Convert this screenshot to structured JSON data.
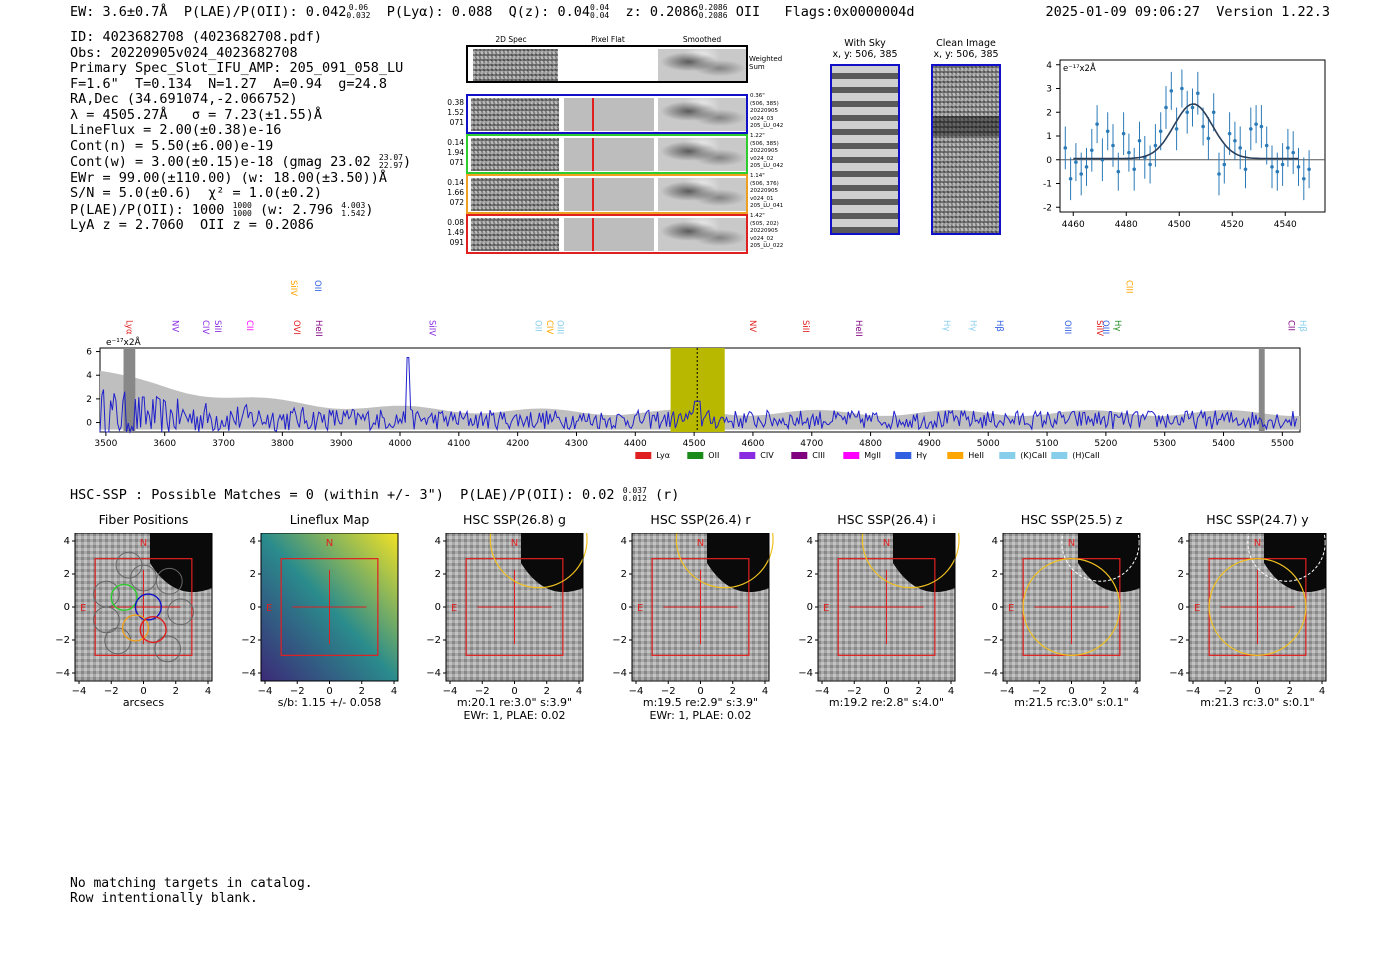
{
  "header": {
    "top_line": "EW: 3.6±0.7Å  P(LAE)/P(OII): 0.042 {0.06/0.032}  P(Lyα): 0.088  Q(z): 0.04 {0.04/0.04}  z: 0.2086 {0.2086/0.2086} OII   Flags:0x0000004d",
    "ew": "EW: 3.6±0.7Å",
    "plae_label": "P(LAE)/P(OII): 0.042",
    "plae_hi": "0.06",
    "plae_lo": "0.032",
    "plya": "P(Lyα): 0.088",
    "qz_label": "Q(z): 0.04",
    "qz_hi": "0.04",
    "qz_lo": "0.04",
    "z_label": "z: 0.2086",
    "z_hi": "0.2086",
    "z_lo": "0.2086",
    "z_line": "OII",
    "flags": "Flags:0x0000004d",
    "timestamp": "2025-01-09 09:06:27  Version 1.22.3"
  },
  "info": {
    "id": "ID: 4023682708 (4023682708.pdf)",
    "obs": "Obs: 20220905v024_4023682708",
    "primary": "Primary Spec_Slot_IFU_AMP: 205_091_058_LU",
    "fiber": "F=1.6\"  T=0.134  N=1.27  A=0.94  g=24.8",
    "radec": "RA,Dec (34.691074,-2.066752)",
    "lambda": "λ = 4505.27Å   σ = 7.23(±1.55)Å",
    "lineflux": "LineFlux = 2.00(±0.38)e-16",
    "contn": "Cont(n) = 5.50(±6.00)e-19",
    "contw_a": "Cont(w) = 3.00(±0.15)e-18 (gmag 23.02",
    "contw_hi": "23.07",
    "contw_lo": "22.97",
    "contw_b": ")",
    "ewr": "EWr = 99.00(±110.00) (w: 18.00(±3.50))Å",
    "sn": "S/N = 5.0(±0.6)  χ² = 1.0(±0.2)",
    "plae_a": "P(LAE)/P(OII): 1000",
    "plae_hi": "1000",
    "plae_lo": "1000",
    "plae_b": "(w: 2.796",
    "plae_w_hi": "4.003",
    "plae_w_lo": "1.542",
    "plae_c": ")",
    "lya": "LyA z = 2.7060  OII z = 0.2086"
  },
  "cutouts": {
    "col_2d": "2D Spec",
    "col_flat": "Pixel Flat",
    "col_smooth": "Smoothed",
    "weighted": "Weighted Sum",
    "rows": [
      {
        "left": [
          "0.38",
          "1.52",
          "071"
        ],
        "right": [
          "0.36\"",
          "(506, 385)",
          "20220905",
          "v024_03",
          "205_LU_042"
        ],
        "color": "#1010c8"
      },
      {
        "left": [
          "0.14",
          "1.94",
          "071"
        ],
        "right": [
          "1.22\"",
          "(506, 385)",
          "20220905",
          "v024_02",
          "205_LU_042"
        ],
        "color": "#2ecc2e"
      },
      {
        "left": [
          "0.14",
          "1.66",
          "072"
        ],
        "right": [
          "1.14\"",
          "(506, 376)",
          "20220905",
          "v024_01",
          "205_LU_041"
        ],
        "color": "#f0a020"
      },
      {
        "left": [
          "0.08",
          "1.49",
          "091"
        ],
        "right": [
          "1.42\"",
          "(505, 202)",
          "20220905",
          "v024_02",
          "205_LU_022"
        ],
        "color": "#e02020"
      }
    ]
  },
  "sky": {
    "with_sky_title": "With Sky",
    "with_sky_xy": "x, y: 506, 385",
    "clean_title": "Clean Image",
    "clean_xy": "x, y: 506, 385"
  },
  "colors": {
    "blue": "#1f1fcc",
    "zoom_blue": "#2a7ab8",
    "band": "#b8b800",
    "red": "#e02020",
    "gray": "#bfbfbf"
  },
  "chart_data": [
    {
      "type": "scatter",
      "id": "zoom-fit",
      "title": "",
      "ylabel_prefix": "e⁻¹⁷x2Å",
      "xlim": [
        4455,
        4555
      ],
      "ylim": [
        -2.2,
        4.2
      ],
      "xticks": [
        4460,
        4480,
        4500,
        4520,
        4540
      ],
      "yticks": [
        -2,
        -1,
        0,
        1,
        2,
        3,
        4
      ],
      "x": [
        4457,
        4459,
        4461,
        4463,
        4465,
        4467,
        4469,
        4471,
        4473,
        4475,
        4477,
        4479,
        4481,
        4483,
        4485,
        4487,
        4489,
        4491,
        4493,
        4495,
        4497,
        4499,
        4501,
        4503,
        4505,
        4507,
        4509,
        4511,
        4513,
        4515,
        4517,
        4519,
        4521,
        4523,
        4525,
        4527,
        4529,
        4531,
        4533,
        4535,
        4537,
        4539,
        4541,
        4543,
        4545,
        4547,
        4549
      ],
      "y": [
        0.5,
        -0.8,
        -0.1,
        -0.6,
        -0.3,
        0.4,
        1.5,
        0.0,
        1.2,
        0.6,
        -0.5,
        1.1,
        0.3,
        -0.4,
        0.8,
        0.1,
        -0.2,
        0.6,
        1.2,
        2.2,
        2.9,
        1.3,
        3.0,
        2.0,
        2.2,
        2.8,
        1.4,
        0.9,
        2.0,
        -0.6,
        -0.2,
        1.1,
        0.8,
        0.5,
        -0.4,
        1.3,
        1.5,
        1.4,
        0.6,
        -0.3,
        -0.5,
        -0.2,
        0.5,
        0.3,
        -0.3,
        -0.8,
        -0.4
      ],
      "err": [
        0.9,
        0.9,
        0.8,
        0.9,
        0.8,
        0.9,
        0.8,
        0.9,
        0.8,
        0.9,
        0.8,
        0.9,
        0.8,
        0.9,
        0.8,
        0.9,
        0.8,
        0.9,
        0.8,
        0.9,
        0.8,
        0.9,
        0.8,
        0.9,
        0.8,
        0.9,
        0.8,
        0.9,
        0.8,
        0.9,
        0.8,
        0.9,
        0.8,
        0.9,
        0.8,
        0.9,
        0.8,
        0.9,
        0.8,
        0.9,
        0.8,
        0.9,
        0.8,
        0.9,
        0.8,
        0.9,
        0.8
      ],
      "fit": {
        "center": 4505.27,
        "sigma": 7.23,
        "amp": 2.3,
        "baseline": 0.05
      }
    },
    {
      "type": "line",
      "id": "full-spectrum",
      "ylabel_prefix": "e⁻¹⁷x2Å",
      "xlim": [
        3490,
        5530
      ],
      "ylim": [
        -0.8,
        6.3
      ],
      "xticks": [
        3500,
        3600,
        3700,
        3800,
        3900,
        4000,
        4100,
        4200,
        4300,
        4400,
        4500,
        4600,
        4700,
        4800,
        4900,
        5000,
        5100,
        5200,
        5300,
        5400,
        5500
      ],
      "yticks": [
        0,
        2,
        4,
        6
      ],
      "highlight": [
        4460,
        4552
      ],
      "line_center": 4505.27,
      "masked": [
        [
          3530,
          3550
        ],
        [
          5460,
          5470
        ]
      ],
      "legend": [
        {
          "label": "Lyα",
          "color": "#e02020"
        },
        {
          "label": "OII",
          "color": "#1a8a1a"
        },
        {
          "label": "CIV",
          "color": "#8a2be2"
        },
        {
          "label": "CIII",
          "color": "#800080"
        },
        {
          "label": "MgII",
          "color": "#ff00ff"
        },
        {
          "label": "Hγ",
          "color": "#3060e0"
        },
        {
          "label": "HeII",
          "color": "#ffa500"
        },
        {
          "label": "(K)CaII",
          "color": "#87ceeb"
        },
        {
          "label": "(H)CaII",
          "color": "#87ceeb"
        }
      ],
      "lines": [
        {
          "label": "Lyα",
          "x": 3530,
          "color": "#e02020",
          "row": "low"
        },
        {
          "label": "NV",
          "x": 3608,
          "color": "#8a2be2",
          "row": "low"
        },
        {
          "label": "CIV",
          "x": 3660,
          "color": "#8a2be2",
          "row": "low"
        },
        {
          "label": "SiII",
          "x": 3680,
          "color": "#8a2be2",
          "row": "low"
        },
        {
          "label": "CII",
          "x": 3735,
          "color": "#ff00ff",
          "row": "low"
        },
        {
          "label": "SiIV",
          "x": 3810,
          "color": "#ffa500",
          "row": "high"
        },
        {
          "label": "OVI",
          "x": 3815,
          "color": "#e02020",
          "row": "low"
        },
        {
          "label": "OII",
          "x": 3850,
          "color": "#3060e0",
          "row": "high"
        },
        {
          "label": "HeII",
          "x": 3852,
          "color": "#800080",
          "row": "low"
        },
        {
          "label": "SiIV",
          "x": 4045,
          "color": "#8a2be2",
          "row": "low"
        },
        {
          "label": "OII",
          "x": 4225,
          "color": "#87ceeb",
          "row": "low"
        },
        {
          "label": "CIV",
          "x": 4245,
          "color": "#ffa500",
          "row": "low"
        },
        {
          "label": "OIII",
          "x": 4263,
          "color": "#87ceeb",
          "row": "low"
        },
        {
          "label": "NV",
          "x": 4590,
          "color": "#e02020",
          "row": "low"
        },
        {
          "label": "SiII",
          "x": 4680,
          "color": "#e02020",
          "row": "low"
        },
        {
          "label": "HeII",
          "x": 4770,
          "color": "#800080",
          "row": "low"
        },
        {
          "label": "Hγ",
          "x": 4920,
          "color": "#87ceeb",
          "row": "low"
        },
        {
          "label": "Hγ",
          "x": 4965,
          "color": "#87ceeb",
          "row": "low"
        },
        {
          "label": "Hβ",
          "x": 5010,
          "color": "#3060e0",
          "row": "low"
        },
        {
          "label": "OIII",
          "x": 5125,
          "color": "#3060e0",
          "row": "low"
        },
        {
          "label": "SiIV",
          "x": 5180,
          "color": "#e02020",
          "row": "low"
        },
        {
          "label": "OIII",
          "x": 5190,
          "color": "#3060e0",
          "row": "low"
        },
        {
          "label": "Hγ",
          "x": 5210,
          "color": "#1a8a1a",
          "row": "low"
        },
        {
          "label": "CIII",
          "x": 5230,
          "color": "#ffa500",
          "row": "high"
        },
        {
          "label": "CII",
          "x": 5505,
          "color": "#800080",
          "row": "low"
        },
        {
          "label": "Hβ",
          "x": 5525,
          "color": "#87ceeb",
          "row": "low"
        }
      ]
    }
  ],
  "hsc": {
    "title": "HSC-SSP : Possible Matches = 0 (within +/- 3\")  P(LAE)/P(OII): 0.02",
    "title_hi": "0.037",
    "title_lo": "0.012",
    "title_suffix": "(r)",
    "ticks": [
      "−4",
      "−2",
      "0",
      "2",
      "4"
    ],
    "north": "N",
    "east": "E",
    "panels": [
      {
        "title": "Fiber Positions",
        "label1": "arcsecs",
        "label2": "",
        "type": "fiber"
      },
      {
        "title": "Lineflux Map",
        "label1": "s/b: 1.15 +/- 0.058",
        "label2": "",
        "type": "lineflux"
      },
      {
        "title": "HSC SSP(26.8) g",
        "label1": "m:20.1  re:3.0\"  s:3.9\"",
        "label2": "EWr: 1, PLAE: 0.02",
        "type": "hsc"
      },
      {
        "title": "HSC SSP(26.4) r",
        "label1": "m:19.5  re:2.9\"  s:3.9\"",
        "label2": "EWr: 1, PLAE: 0.02",
        "type": "hsc"
      },
      {
        "title": "HSC SSP(26.4) i",
        "label1": "m:19.2  re:2.8\"  s:4.0\"",
        "label2": "",
        "type": "hsc"
      },
      {
        "title": "HSC SSP(25.5) z",
        "label1": "m:21.5  rc:3.0\"  s:0.1\"",
        "label2": "",
        "type": "hsc2"
      },
      {
        "title": "HSC SSP(24.7) y",
        "label1": "m:21.3  rc:3.0\"  s:0.1\"",
        "label2": "",
        "type": "hsc2"
      }
    ]
  },
  "footer": {
    "line1": "No matching targets in catalog.",
    "line2": "Row intentionally blank."
  }
}
